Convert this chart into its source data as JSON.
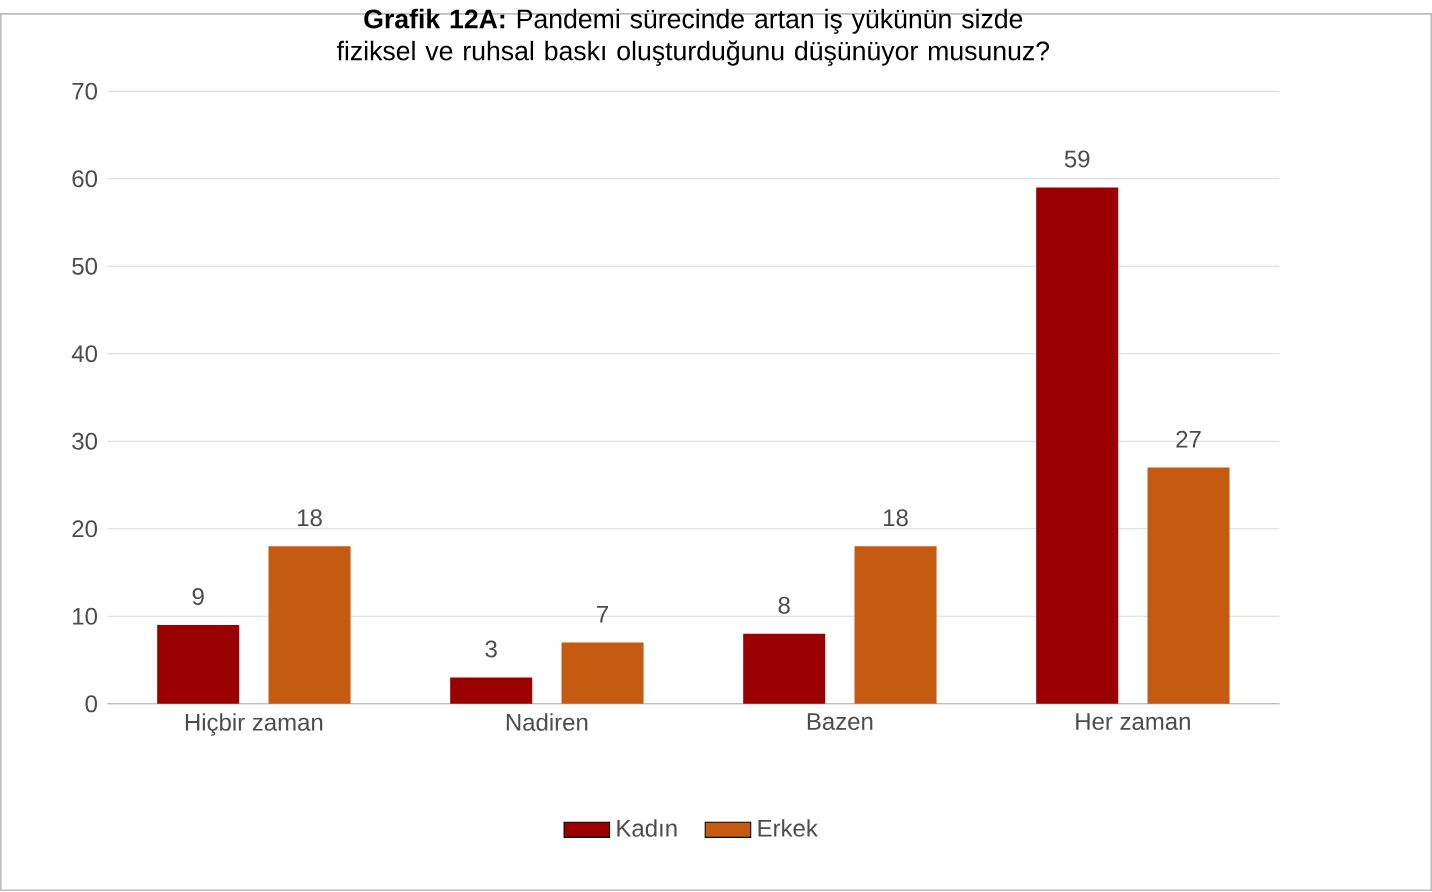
{
  "chart_data": {
    "type": "bar",
    "title": "**Grafik 12A:** Pandemi sürecinde artan iş yükünün sizde fiziksel ve ruhsal baskı oluşturduğunu düşünüyor musunuz?",
    "categories": [
      "Hiçbir zaman",
      "Nadiren",
      "Bazen",
      "Her zaman"
    ],
    "series": [
      {
        "name": "Kadın",
        "color": "#9b0000",
        "values": [
          9,
          3,
          8,
          59
        ]
      },
      {
        "name": "Erkek",
        "color": "#c55a11",
        "values": [
          18,
          7,
          18,
          27
        ]
      }
    ],
    "ylim": [
      0,
      70
    ],
    "yticks": [
      0,
      10,
      20,
      30,
      40,
      50,
      60,
      70
    ],
    "grid": "y",
    "legend": "bottom",
    "data_labels": true
  }
}
